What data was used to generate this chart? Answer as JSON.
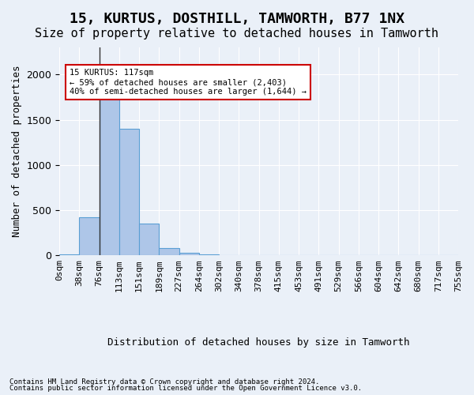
{
  "title": "15, KURTUS, DOSTHILL, TAMWORTH, B77 1NX",
  "subtitle": "Size of property relative to detached houses in Tamworth",
  "xlabel": "Distribution of detached houses by size in Tamworth",
  "ylabel": "Number of detached properties",
  "footer_line1": "Contains HM Land Registry data © Crown copyright and database right 2024.",
  "footer_line2": "Contains public sector information licensed under the Open Government Licence v3.0.",
  "bin_labels": [
    "0sqm",
    "38sqm",
    "76sqm",
    "113sqm",
    "151sqm",
    "189sqm",
    "227sqm",
    "264sqm",
    "302sqm",
    "340sqm",
    "378sqm",
    "415sqm",
    "453sqm",
    "491sqm",
    "529sqm",
    "566sqm",
    "604sqm",
    "642sqm",
    "680sqm",
    "717sqm",
    "755sqm"
  ],
  "bar_values": [
    15,
    420,
    1800,
    1400,
    350,
    80,
    30,
    15,
    0,
    0,
    0,
    0,
    0,
    0,
    0,
    0,
    0,
    0,
    0,
    0
  ],
  "bar_color": "#aec6e8",
  "bar_edge_color": "#5a9fd4",
  "annotation_text": "15 KURTUS: 117sqm\n← 59% of detached houses are smaller (2,403)\n40% of semi-detached houses are larger (1,644) →",
  "annotation_box_color": "#ffffff",
  "annotation_box_edge_color": "#cc0000",
  "vline_x": 2.0,
  "vline_color": "#333333",
  "ylim": [
    0,
    2300
  ],
  "background_color": "#eaf0f8",
  "plot_bg_color": "#eaf0f8",
  "title_fontsize": 13,
  "subtitle_fontsize": 11,
  "tick_fontsize": 8,
  "ylabel_fontsize": 9,
  "xlabel_fontsize": 9
}
